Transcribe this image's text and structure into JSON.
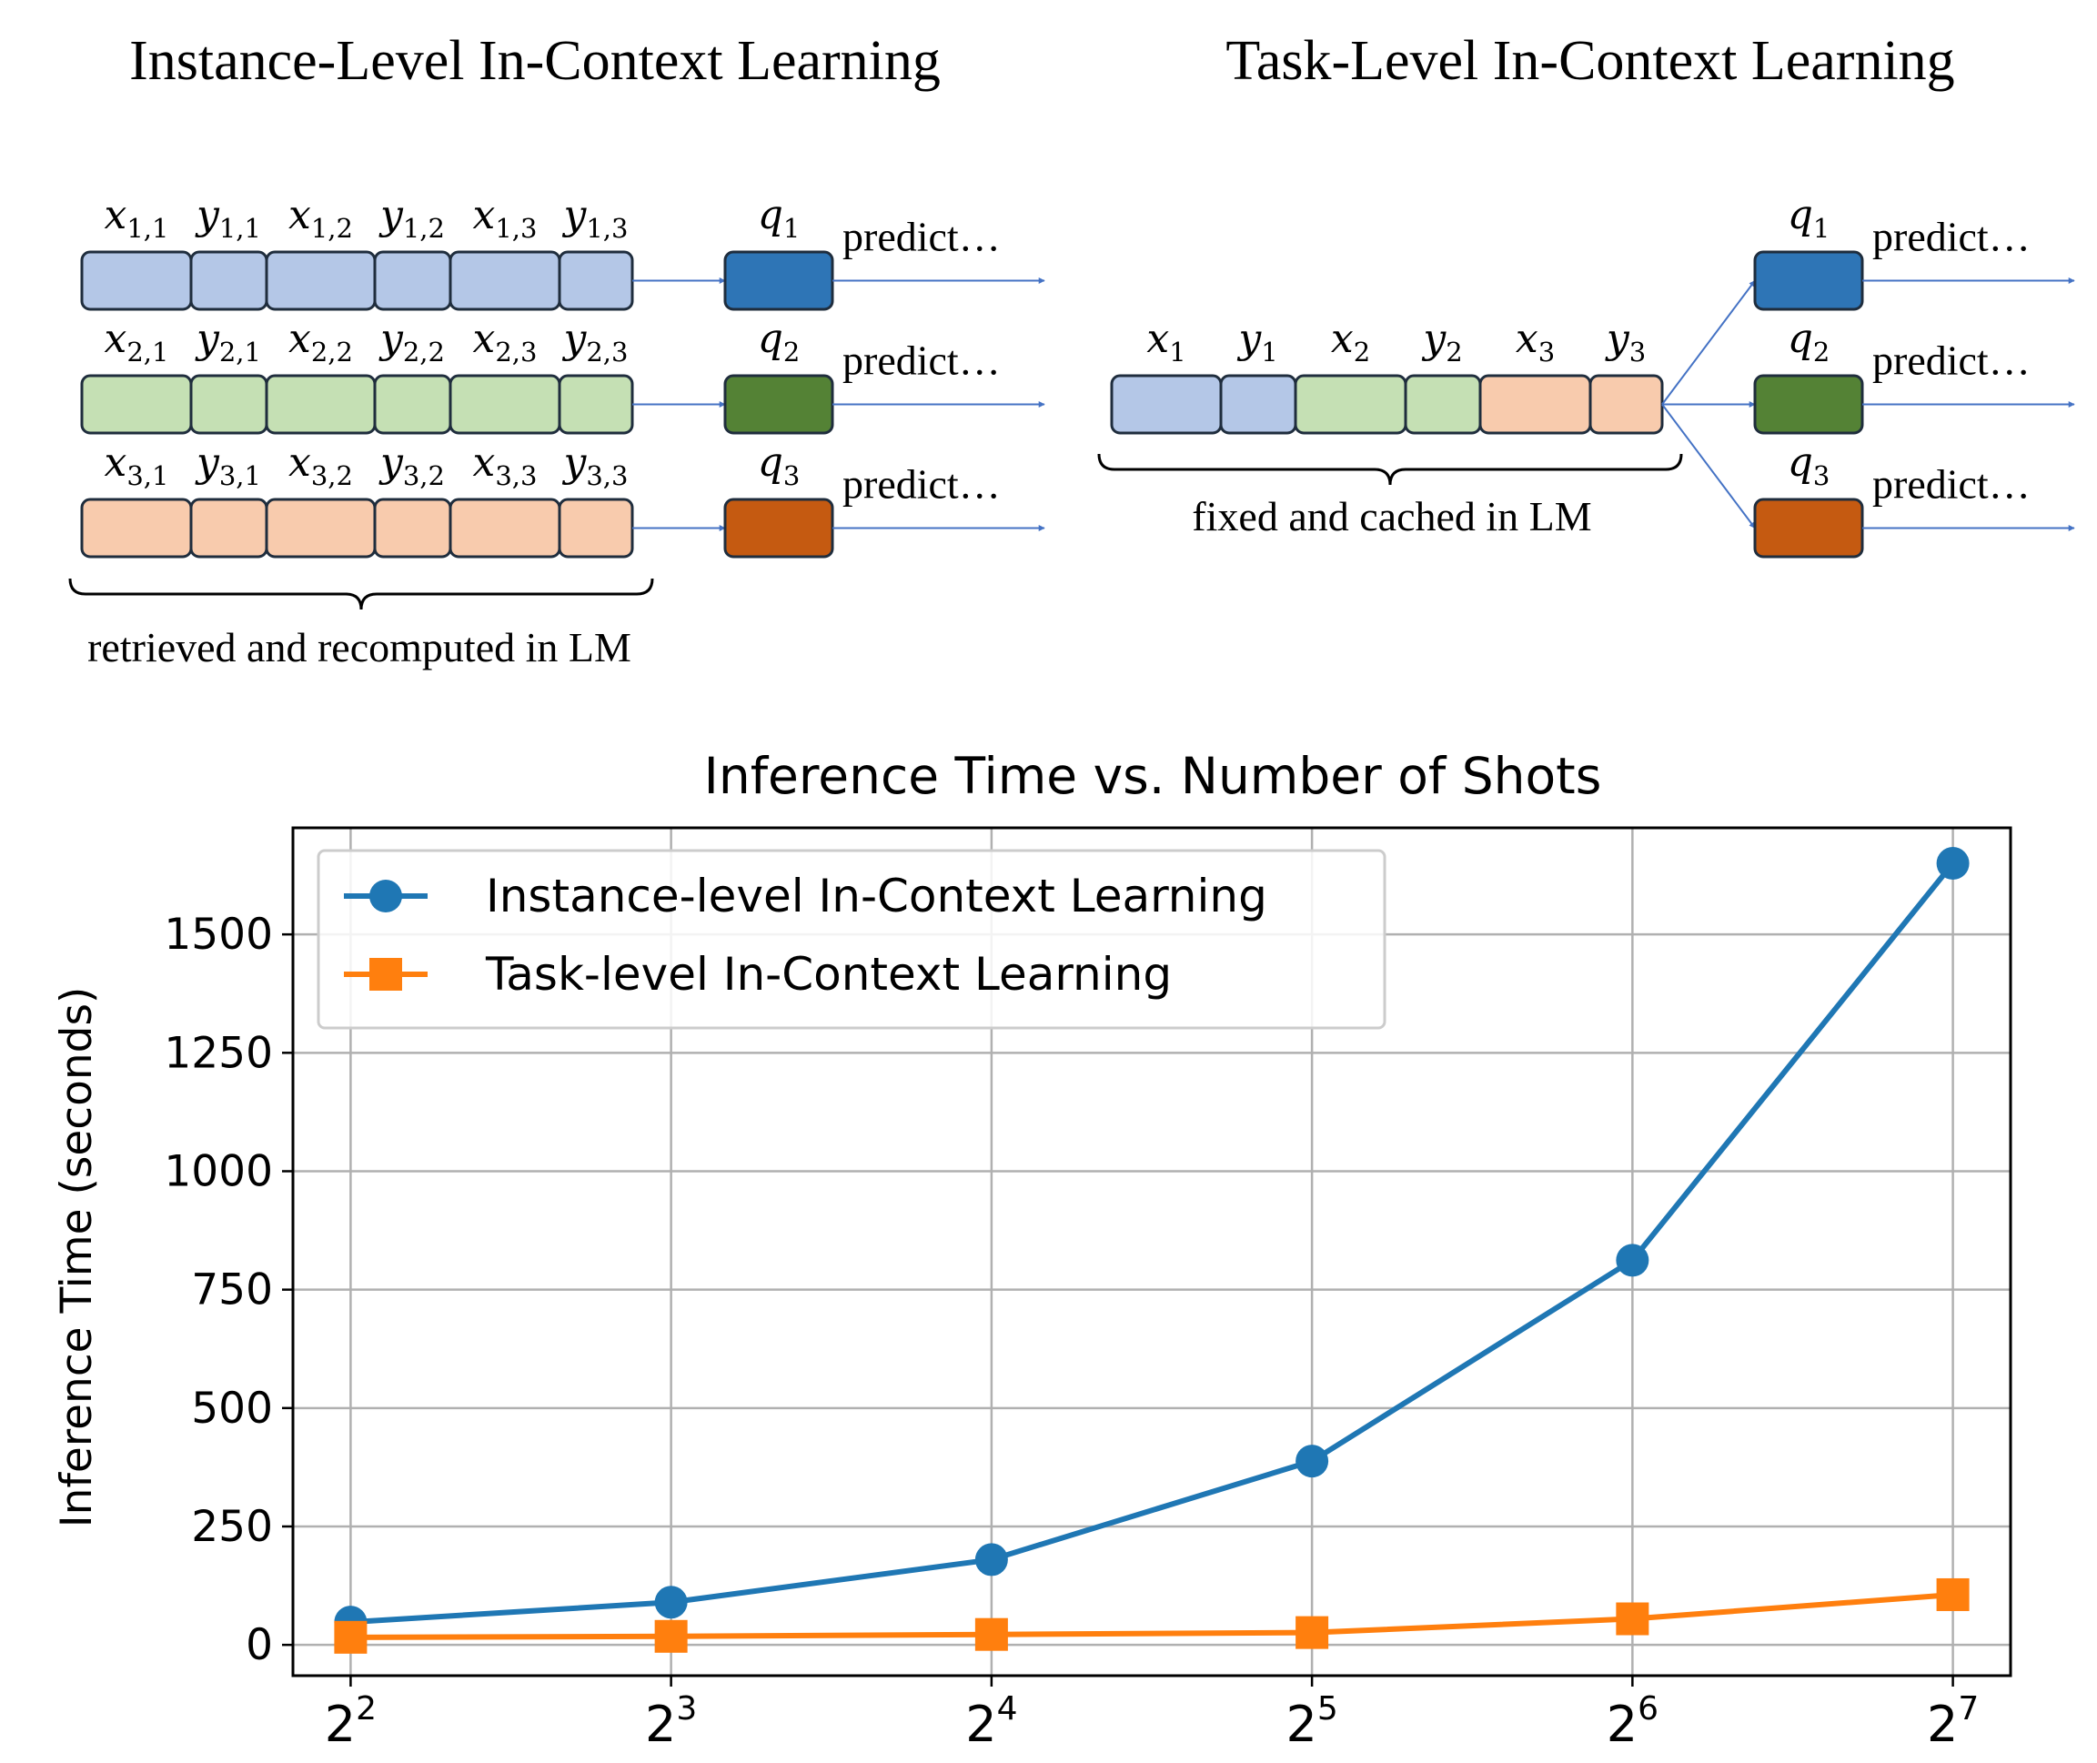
{
  "diagram": {
    "left_title": "Instance-Level In-Context Learning",
    "right_title": "Task-Level In-Context Learning",
    "predict_label": "predict…",
    "left_brace_label": "retrieved and recomputed in LM",
    "right_brace_label": "fixed and cached in LM",
    "left_rows": [
      {
        "tokens": [
          {
            "base": "x",
            "sub": "1,1"
          },
          {
            "base": "y",
            "sub": "1,1"
          },
          {
            "base": "x",
            "sub": "1,2"
          },
          {
            "base": "y",
            "sub": "1,2"
          },
          {
            "base": "x",
            "sub": "1,3"
          },
          {
            "base": "y",
            "sub": "1,3"
          }
        ],
        "query": {
          "base": "q",
          "sub": "1"
        },
        "fill": "#b4c7e7",
        "query_fill": "#2e75b6"
      },
      {
        "tokens": [
          {
            "base": "x",
            "sub": "2,1"
          },
          {
            "base": "y",
            "sub": "2,1"
          },
          {
            "base": "x",
            "sub": "2,2"
          },
          {
            "base": "y",
            "sub": "2,2"
          },
          {
            "base": "x",
            "sub": "2,3"
          },
          {
            "base": "y",
            "sub": "2,3"
          }
        ],
        "query": {
          "base": "q",
          "sub": "2"
        },
        "fill": "#c5e0b4",
        "query_fill": "#548235"
      },
      {
        "tokens": [
          {
            "base": "x",
            "sub": "3,1"
          },
          {
            "base": "y",
            "sub": "3,1"
          },
          {
            "base": "x",
            "sub": "3,2"
          },
          {
            "base": "y",
            "sub": "3,2"
          },
          {
            "base": "x",
            "sub": "3,3"
          },
          {
            "base": "y",
            "sub": "3,3"
          }
        ],
        "query": {
          "base": "q",
          "sub": "3"
        },
        "fill": "#f8cbad",
        "query_fill": "#c55a11"
      }
    ],
    "right_tokens": [
      {
        "base": "x",
        "sub": "1",
        "fill": "#b4c7e7"
      },
      {
        "base": "y",
        "sub": "1",
        "fill": "#b4c7e7"
      },
      {
        "base": "x",
        "sub": "2",
        "fill": "#c5e0b4"
      },
      {
        "base": "y",
        "sub": "2",
        "fill": "#c5e0b4"
      },
      {
        "base": "x",
        "sub": "3",
        "fill": "#f8cbad"
      },
      {
        "base": "y",
        "sub": "3",
        "fill": "#f8cbad"
      }
    ],
    "right_queries": [
      {
        "base": "q",
        "sub": "1",
        "fill": "#2e75b6"
      },
      {
        "base": "q",
        "sub": "2",
        "fill": "#548235"
      },
      {
        "base": "q",
        "sub": "3",
        "fill": "#c55a11"
      }
    ],
    "arrow_color": "#4472c4",
    "border_color": "#1f2d3d"
  },
  "chart_data": {
    "type": "line",
    "title": "Inference Time vs. Number of Shots",
    "xlabel": "",
    "ylabel": "Inference Time (seconds)",
    "x": [
      4,
      8,
      16,
      32,
      64,
      128
    ],
    "x_scale": "log2",
    "x_tick_labels": [
      {
        "base": "2",
        "exp": "2"
      },
      {
        "base": "2",
        "exp": "3"
      },
      {
        "base": "2",
        "exp": "4"
      },
      {
        "base": "2",
        "exp": "5"
      },
      {
        "base": "2",
        "exp": "6"
      },
      {
        "base": "2",
        "exp": "7"
      }
    ],
    "y_ticks": [
      0,
      250,
      500,
      750,
      1000,
      1250,
      1500
    ],
    "ylim": [
      -65,
      1725
    ],
    "grid": true,
    "legend_position": "top-left",
    "series": [
      {
        "name": "Instance-level In-Context Learning",
        "values": [
          48,
          90,
          180,
          388,
          812,
          1650
        ],
        "color": "#1f77b4",
        "marker": "circle"
      },
      {
        "name": "Task-level In-Context Learning",
        "values": [
          16,
          18,
          22,
          26,
          55,
          106
        ],
        "color": "#ff7f0e",
        "marker": "square"
      }
    ]
  }
}
